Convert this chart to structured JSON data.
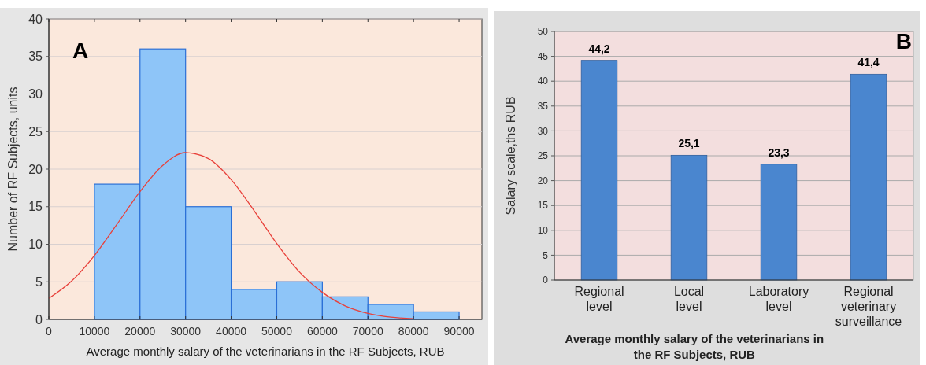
{
  "chart_data": [
    {
      "type": "histogram",
      "xlabel": "Average monthly salary of the veterinarians in the RF Subjects, RUB",
      "ylabel": "Number of RF Subjects, units",
      "annotations": [
        "A"
      ],
      "bins": [
        10000,
        20000,
        30000,
        40000,
        50000,
        60000,
        70000,
        80000,
        90000
      ],
      "values": [
        18,
        36,
        15,
        4,
        5,
        3,
        2,
        1
      ],
      "color": "#8ec5f8",
      "series": [
        {
          "type": "line",
          "color": "#e8403a",
          "x": [
            0,
            5000,
            10000,
            15000,
            20000,
            25000,
            30000,
            35000,
            40000,
            45000,
            50000,
            55000,
            60000,
            65000,
            70000,
            75000,
            80000
          ],
          "values": [
            2.8,
            5.1,
            8.5,
            12.7,
            17.0,
            20.5,
            22.2,
            21.4,
            18.6,
            14.5,
            10.1,
            6.3,
            3.6,
            1.8,
            0.8,
            0.3,
            0.1
          ]
        }
      ],
      "xlim": [
        0,
        95000
      ],
      "xticks": [
        0,
        10000,
        20000,
        30000,
        40000,
        50000,
        60000,
        70000,
        80000,
        90000
      ],
      "ylim": [
        0,
        40
      ],
      "yticks": [
        0,
        5,
        10,
        15,
        20,
        25,
        30,
        35,
        40
      ],
      "grid": "y"
    },
    {
      "type": "bar",
      "xlabel": "Average monthly salary of the veterinarians in the RF Subjects, RUB",
      "ylabel": "Salary scale,ths RUB",
      "annotations": [
        "B"
      ],
      "categories": [
        "Regional level",
        "Local level",
        "Laboratory level",
        "Regional veterinary surveillance"
      ],
      "values": [
        44.2,
        25.1,
        23.3,
        41.4
      ],
      "value_labels": [
        "44,2",
        "25,1",
        "23,3",
        "41,4"
      ],
      "color": "#4a86cf",
      "ylim": [
        0,
        50
      ],
      "yticks": [
        0,
        5,
        10,
        15,
        20,
        25,
        30,
        35,
        40,
        45,
        50
      ],
      "grid": "y"
    }
  ]
}
